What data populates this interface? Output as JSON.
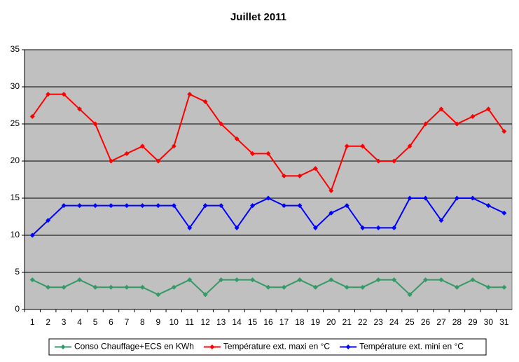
{
  "chart_data": {
    "type": "line",
    "title": "Juillet 2011",
    "categories": [
      1,
      2,
      3,
      4,
      5,
      6,
      7,
      8,
      9,
      10,
      11,
      12,
      13,
      14,
      15,
      16,
      17,
      18,
      19,
      20,
      21,
      22,
      23,
      24,
      25,
      26,
      27,
      28,
      29,
      30,
      31
    ],
    "series": [
      {
        "name": "Conso Chauffage+ECS en KWh",
        "color": "#339966",
        "values": [
          4,
          3,
          3,
          4,
          3,
          3,
          3,
          3,
          2,
          3,
          4,
          2,
          4,
          4,
          4,
          3,
          3,
          4,
          3,
          4,
          3,
          3,
          4,
          4,
          2,
          4,
          4,
          3,
          4,
          3,
          3
        ]
      },
      {
        "name": "Température ext. maxi en °C",
        "color": "#ff0000",
        "values": [
          26,
          29,
          29,
          27,
          25,
          20,
          21,
          22,
          20,
          22,
          29,
          28,
          25,
          23,
          21,
          21,
          18,
          18,
          19,
          16,
          22,
          22,
          20,
          20,
          22,
          25,
          27,
          25,
          26,
          27,
          24
        ]
      },
      {
        "name": "Température ext. mini en °C",
        "color": "#0000ff",
        "values": [
          10,
          12,
          14,
          14,
          14,
          14,
          14,
          14,
          14,
          14,
          11,
          14,
          14,
          11,
          14,
          15,
          14,
          14,
          11,
          13,
          14,
          11,
          11,
          11,
          15,
          15,
          12,
          15,
          15,
          14,
          13
        ]
      }
    ],
    "ylim": [
      0,
      35
    ],
    "yticks": [
      0,
      5,
      10,
      15,
      20,
      25,
      30,
      35
    ],
    "grid": true,
    "legend": "bottom"
  }
}
